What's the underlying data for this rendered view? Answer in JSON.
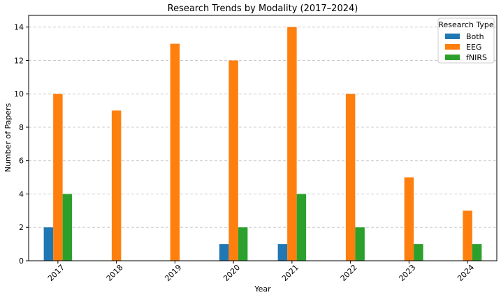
{
  "chart_data": {
    "type": "bar",
    "title": "Research Trends by Modality (2017–2024)",
    "xlabel": "Year",
    "ylabel": "Number of Papers",
    "categories": [
      "2017",
      "2018",
      "2019",
      "2020",
      "2021",
      "2022",
      "2023",
      "2024"
    ],
    "ylim": [
      0,
      14.7
    ],
    "yticks": [
      0,
      2,
      4,
      6,
      8,
      10,
      12,
      14
    ],
    "grid": true,
    "legend": {
      "title": "Research Type",
      "position": "top-right"
    },
    "series": [
      {
        "name": "Both",
        "color": "#1f77b4",
        "values": [
          2,
          0,
          0,
          1,
          1,
          0,
          0,
          0
        ]
      },
      {
        "name": "EEG",
        "color": "#ff7f0e",
        "values": [
          10,
          9,
          13,
          12,
          14,
          10,
          5,
          3
        ]
      },
      {
        "name": "fNIRS",
        "color": "#2ca02c",
        "values": [
          4,
          0,
          0,
          2,
          4,
          2,
          1,
          1
        ]
      }
    ]
  }
}
